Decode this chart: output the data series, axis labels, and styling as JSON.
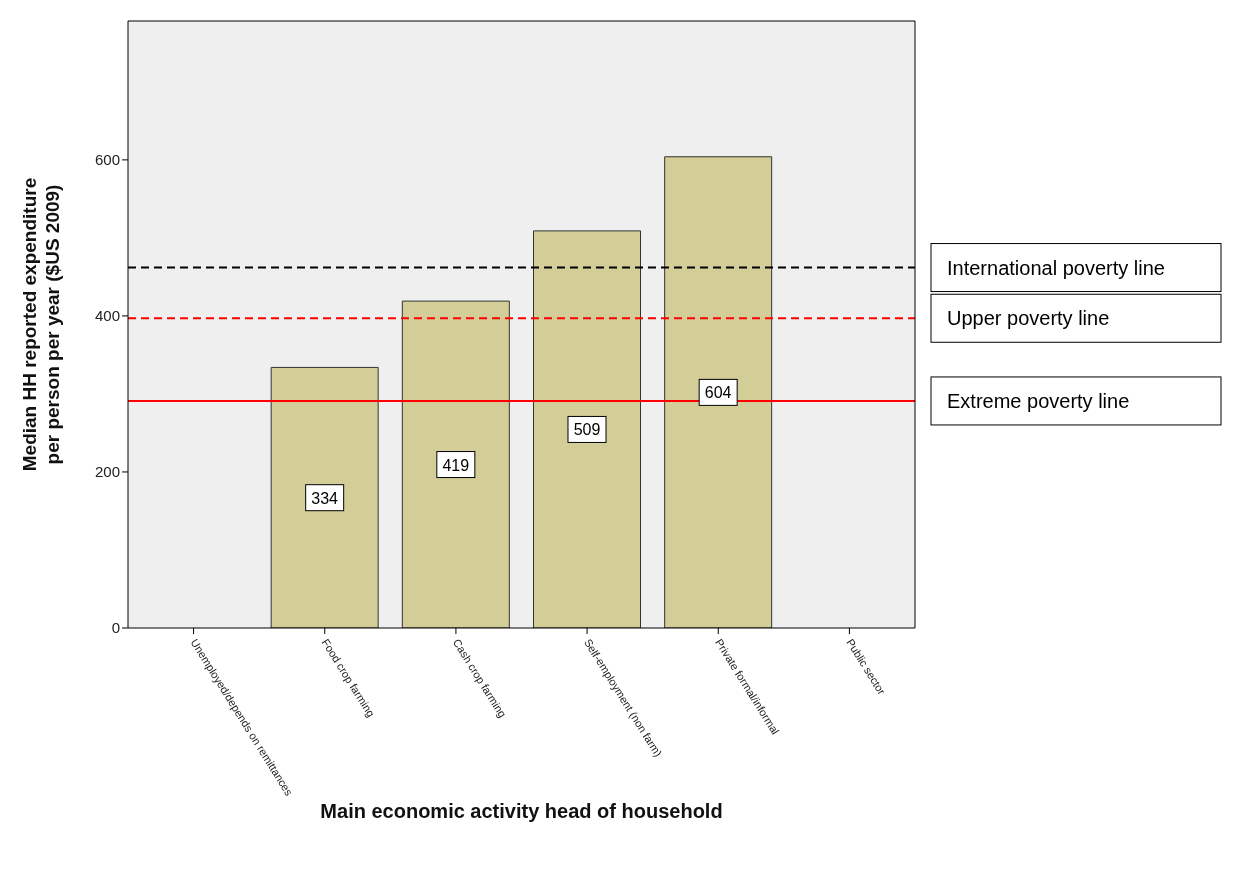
{
  "chart_data": {
    "type": "bar",
    "xlabel": "Main economic activity head of household",
    "ylabel": "Median HH reported expenditure per person per year ($US 2009)",
    "categories": [
      "Unemployed/depends on remittances",
      "Food crop farming",
      "Cash crop farming",
      "Self-employment (non farm)",
      "Private formal/informal",
      "Public sector"
    ],
    "values": [
      null,
      334,
      419,
      509,
      604,
      null
    ],
    "color": "#d3cd98",
    "ylim": [
      0,
      778
    ],
    "yticks": [
      0,
      200,
      400,
      600
    ],
    "grid": false,
    "legend": false,
    "data_labels": true,
    "ref_lines": [
      {
        "axis": "y",
        "value": 462,
        "label": "International poverty line",
        "color": "#000000",
        "line_style": "dashed"
      },
      {
        "axis": "y",
        "value": 397,
        "label": "Upper poverty line",
        "color": "#ff0000",
        "line_style": "dashed"
      },
      {
        "axis": "y",
        "value": 291,
        "label": "Extreme poverty line",
        "color": "#ff0000",
        "line_style": "solid"
      }
    ]
  }
}
